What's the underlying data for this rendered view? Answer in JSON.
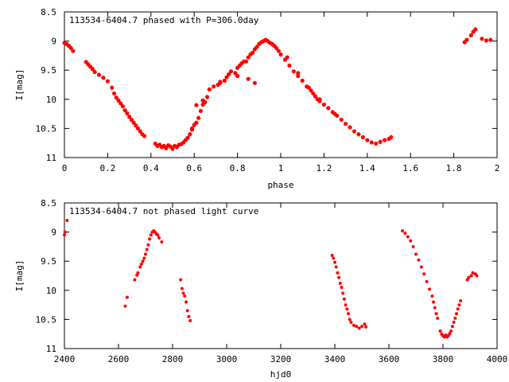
{
  "chart_data": [
    {
      "type": "scatter",
      "title": "113534-6404.7 phased with P=306.0day",
      "xlabel": "phase",
      "ylabel": "I[mag]",
      "xlim": [
        0,
        2
      ],
      "ylim": [
        8.5,
        11
      ],
      "y_inverted": true,
      "x_ticks": [
        "0",
        "0.2",
        "0.4",
        "0.6",
        "0.8",
        "1",
        "1.2",
        "1.4",
        "1.6",
        "1.8",
        "2"
      ],
      "y_ticks": [
        "8.5",
        "9",
        "9.5",
        "10",
        "10.5",
        "11"
      ],
      "marker_color": "#ff0000",
      "series": [
        {
          "values": [
            [
              0.0,
              9.03
            ],
            [
              0.01,
              9.05
            ],
            [
              0.02,
              9.08
            ],
            [
              0.03,
              9.12
            ],
            [
              0.04,
              9.17
            ],
            [
              0.1,
              9.36
            ],
            [
              0.11,
              9.4
            ],
            [
              0.12,
              9.44
            ],
            [
              0.13,
              9.48
            ],
            [
              0.14,
              9.53
            ],
            [
              0.16,
              9.58
            ],
            [
              0.18,
              9.63
            ],
            [
              0.2,
              9.69
            ],
            [
              0.22,
              9.8
            ],
            [
              0.23,
              9.9
            ],
            [
              0.24,
              9.97
            ],
            [
              0.25,
              10.02
            ],
            [
              0.26,
              10.07
            ],
            [
              0.27,
              10.12
            ],
            [
              0.28,
              10.19
            ],
            [
              0.29,
              10.24
            ],
            [
              0.3,
              10.3
            ],
            [
              0.31,
              10.35
            ],
            [
              0.32,
              10.4
            ],
            [
              0.33,
              10.45
            ],
            [
              0.34,
              10.5
            ],
            [
              0.35,
              10.55
            ],
            [
              0.36,
              10.6
            ],
            [
              0.37,
              10.63
            ],
            [
              0.42,
              10.76
            ],
            [
              0.43,
              10.8
            ],
            [
              0.44,
              10.78
            ],
            [
              0.45,
              10.82
            ],
            [
              0.46,
              10.8
            ],
            [
              0.47,
              10.84
            ],
            [
              0.48,
              10.79
            ],
            [
              0.49,
              10.81
            ],
            [
              0.5,
              10.85
            ],
            [
              0.51,
              10.8
            ],
            [
              0.52,
              10.82
            ],
            [
              0.53,
              10.78
            ],
            [
              0.54,
              10.77
            ],
            [
              0.55,
              10.74
            ],
            [
              0.56,
              10.7
            ],
            [
              0.58,
              10.6
            ],
            [
              0.59,
              10.52
            ],
            [
              0.6,
              10.44
            ],
            [
              0.61,
              10.4
            ],
            [
              0.62,
              10.32
            ],
            [
              0.63,
              10.2
            ],
            [
              0.64,
              10.09
            ],
            [
              0.65,
              10.05
            ],
            [
              0.66,
              9.96
            ],
            [
              0.67,
              9.83
            ],
            [
              0.69,
              9.78
            ],
            [
              0.71,
              9.75
            ],
            [
              0.72,
              9.72
            ],
            [
              0.74,
              9.68
            ],
            [
              0.75,
              9.62
            ],
            [
              0.76,
              9.57
            ],
            [
              0.77,
              9.52
            ],
            [
              0.79,
              9.55
            ],
            [
              0.8,
              9.46
            ],
            [
              0.81,
              9.42
            ],
            [
              0.82,
              9.38
            ],
            [
              0.83,
              9.35
            ],
            [
              0.84,
              9.35
            ],
            [
              0.85,
              9.28
            ],
            [
              0.86,
              9.23
            ],
            [
              0.87,
              9.2
            ],
            [
              0.88,
              9.14
            ],
            [
              0.89,
              9.1
            ],
            [
              0.9,
              9.05
            ],
            [
              0.91,
              9.02
            ],
            [
              0.92,
              9.0
            ],
            [
              0.93,
              8.98
            ],
            [
              0.94,
              9.0
            ],
            [
              0.95,
              9.03
            ],
            [
              0.96,
              9.05
            ],
            [
              0.97,
              9.08
            ],
            [
              0.98,
              9.12
            ],
            [
              0.99,
              9.17
            ],
            [
              1.0,
              9.23
            ],
            [
              1.02,
              9.32
            ],
            [
              1.04,
              9.42
            ],
            [
              1.06,
              9.52
            ],
            [
              1.08,
              9.6
            ],
            [
              1.1,
              9.68
            ],
            [
              1.12,
              9.78
            ],
            [
              1.14,
              9.85
            ],
            [
              1.15,
              9.9
            ],
            [
              1.16,
              9.95
            ],
            [
              1.17,
              10.0
            ],
            [
              1.18,
              10.03
            ],
            [
              1.2,
              10.09
            ],
            [
              1.22,
              10.15
            ],
            [
              1.24,
              10.22
            ],
            [
              1.26,
              10.28
            ],
            [
              1.28,
              10.35
            ],
            [
              1.3,
              10.42
            ],
            [
              1.32,
              10.48
            ],
            [
              1.34,
              10.55
            ],
            [
              1.36,
              10.6
            ],
            [
              1.38,
              10.65
            ],
            [
              1.4,
              10.7
            ],
            [
              1.42,
              10.74
            ],
            [
              1.44,
              10.76
            ],
            [
              1.46,
              10.73
            ],
            [
              1.48,
              10.7
            ],
            [
              1.5,
              10.68
            ],
            [
              1.51,
              10.65
            ],
            [
              0.72,
              9.7
            ],
            [
              0.8,
              9.6
            ],
            [
              0.85,
              9.65
            ],
            [
              0.88,
              9.72
            ],
            [
              1.03,
              9.28
            ],
            [
              1.08,
              9.55
            ],
            [
              1.13,
              9.8
            ],
            [
              1.18,
              10.0
            ],
            [
              1.25,
              10.25
            ],
            [
              0.61,
              10.1
            ],
            [
              0.64,
              10.02
            ],
            [
              0.59,
              10.5
            ],
            [
              0.57,
              10.66
            ],
            [
              1.85,
              9.02
            ],
            [
              1.86,
              8.98
            ],
            [
              1.88,
              8.9
            ],
            [
              1.89,
              8.84
            ],
            [
              1.9,
              8.8
            ],
            [
              1.93,
              8.96
            ],
            [
              1.95,
              8.99
            ],
            [
              1.97,
              8.98
            ]
          ]
        }
      ]
    },
    {
      "type": "scatter",
      "title": "113534-6404.7 not phased light curve",
      "xlabel": "hjd0",
      "ylabel": "I[mag]",
      "xlim": [
        2400,
        4000
      ],
      "ylim": [
        8.5,
        11
      ],
      "y_inverted": true,
      "x_ticks": [
        "2400",
        "2600",
        "2800",
        "3000",
        "3200",
        "3400",
        "3600",
        "3800",
        "4000"
      ],
      "y_ticks": [
        "8.5",
        "9",
        "9.5",
        "10",
        "10.5",
        "11"
      ],
      "marker_color": "#ff0000",
      "series": [
        {
          "values": [
            [
              2400,
              9.05
            ],
            [
              2402,
              9.0
            ],
            [
              2410,
              8.8
            ],
            [
              2625,
              10.27
            ],
            [
              2632,
              10.12
            ],
            [
              2660,
              9.82
            ],
            [
              2668,
              9.74
            ],
            [
              2672,
              9.7
            ],
            [
              2680,
              9.6
            ],
            [
              2685,
              9.55
            ],
            [
              2690,
              9.5
            ],
            [
              2695,
              9.45
            ],
            [
              2700,
              9.38
            ],
            [
              2705,
              9.3
            ],
            [
              2710,
              9.22
            ],
            [
              2715,
              9.12
            ],
            [
              2720,
              9.05
            ],
            [
              2725,
              9.0
            ],
            [
              2730,
              8.98
            ],
            [
              2735,
              9.0
            ],
            [
              2740,
              9.03
            ],
            [
              2745,
              9.05
            ],
            [
              2750,
              9.1
            ],
            [
              2760,
              9.17
            ],
            [
              2830,
              9.82
            ],
            [
              2835,
              9.97
            ],
            [
              2840,
              10.05
            ],
            [
              2845,
              10.1
            ],
            [
              2850,
              10.2
            ],
            [
              2855,
              10.35
            ],
            [
              2860,
              10.45
            ],
            [
              2865,
              10.52
            ],
            [
              3390,
              9.4
            ],
            [
              3395,
              9.45
            ],
            [
              3400,
              9.52
            ],
            [
              3405,
              9.6
            ],
            [
              3410,
              9.7
            ],
            [
              3415,
              9.78
            ],
            [
              3420,
              9.88
            ],
            [
              3425,
              9.95
            ],
            [
              3430,
              10.05
            ],
            [
              3435,
              10.15
            ],
            [
              3440,
              10.25
            ],
            [
              3445,
              10.32
            ],
            [
              3450,
              10.4
            ],
            [
              3455,
              10.5
            ],
            [
              3460,
              10.55
            ],
            [
              3470,
              10.6
            ],
            [
              3480,
              10.62
            ],
            [
              3490,
              10.65
            ],
            [
              3500,
              10.62
            ],
            [
              3510,
              10.58
            ],
            [
              3515,
              10.63
            ],
            [
              3650,
              8.98
            ],
            [
              3660,
              9.02
            ],
            [
              3670,
              9.08
            ],
            [
              3680,
              9.15
            ],
            [
              3690,
              9.25
            ],
            [
              3700,
              9.38
            ],
            [
              3710,
              9.48
            ],
            [
              3720,
              9.6
            ],
            [
              3730,
              9.72
            ],
            [
              3740,
              9.85
            ],
            [
              3750,
              9.98
            ],
            [
              3760,
              10.1
            ],
            [
              3765,
              10.2
            ],
            [
              3770,
              10.3
            ],
            [
              3775,
              10.4
            ],
            [
              3780,
              10.48
            ],
            [
              3790,
              10.7
            ],
            [
              3795,
              10.75
            ],
            [
              3800,
              10.78
            ],
            [
              3805,
              10.8
            ],
            [
              3810,
              10.77
            ],
            [
              3815,
              10.8
            ],
            [
              3820,
              10.78
            ],
            [
              3825,
              10.74
            ],
            [
              3830,
              10.7
            ],
            [
              3835,
              10.62
            ],
            [
              3840,
              10.55
            ],
            [
              3845,
              10.48
            ],
            [
              3850,
              10.4
            ],
            [
              3855,
              10.32
            ],
            [
              3860,
              10.25
            ],
            [
              3865,
              10.18
            ],
            [
              3890,
              9.82
            ],
            [
              3895,
              9.78
            ],
            [
              3905,
              9.75
            ],
            [
              3910,
              9.7
            ],
            [
              3920,
              9.72
            ],
            [
              3925,
              9.75
            ]
          ]
        }
      ]
    }
  ]
}
